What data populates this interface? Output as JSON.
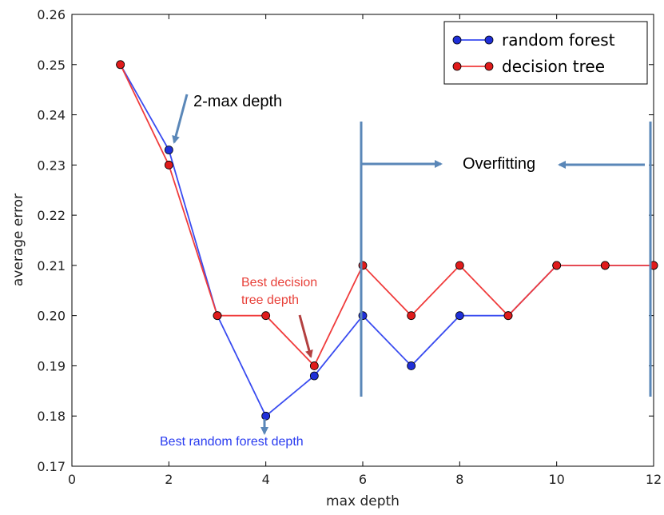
{
  "chart_data": {
    "type": "line",
    "title": "",
    "xlabel": "max depth",
    "ylabel": "average error",
    "xlim": [
      0,
      12
    ],
    "ylim": [
      0.17,
      0.26
    ],
    "x_ticks": [
      "0",
      "2",
      "4",
      "6",
      "8",
      "10",
      "12"
    ],
    "y_ticks": [
      "0.17",
      "0.18",
      "0.19",
      "0.20",
      "0.21",
      "0.22",
      "0.23",
      "0.24",
      "0.25",
      "0.26"
    ],
    "grid": false,
    "legend_position": "top-right",
    "series": [
      {
        "name": "random forest",
        "color": "#3a4cf0",
        "marker_color": "#1f2fd8",
        "x": [
          1,
          2,
          3,
          4,
          5,
          6,
          7,
          8,
          9,
          10,
          11,
          12
        ],
        "y": [
          0.25,
          0.233,
          0.2,
          0.18,
          0.188,
          0.2,
          0.19,
          0.2,
          0.2,
          0.21,
          0.21,
          0.21
        ]
      },
      {
        "name": "decision tree",
        "color": "#f03c3c",
        "marker_color": "#e01b1b",
        "x": [
          1,
          2,
          3,
          4,
          5,
          6,
          7,
          8,
          9,
          10,
          11,
          12
        ],
        "y": [
          0.25,
          0.23,
          0.2,
          0.2,
          0.19,
          0.21,
          0.2,
          0.21,
          0.2,
          0.21,
          0.21,
          0.21
        ]
      }
    ],
    "annotations": {
      "max_depth_2": "2-max depth",
      "overfitting": "Overfitting",
      "best_tree_line1": "Best decision",
      "best_tree_line2": "tree depth",
      "best_forest": "Best random forest depth"
    },
    "overfitting_region": [
      6,
      12
    ]
  }
}
